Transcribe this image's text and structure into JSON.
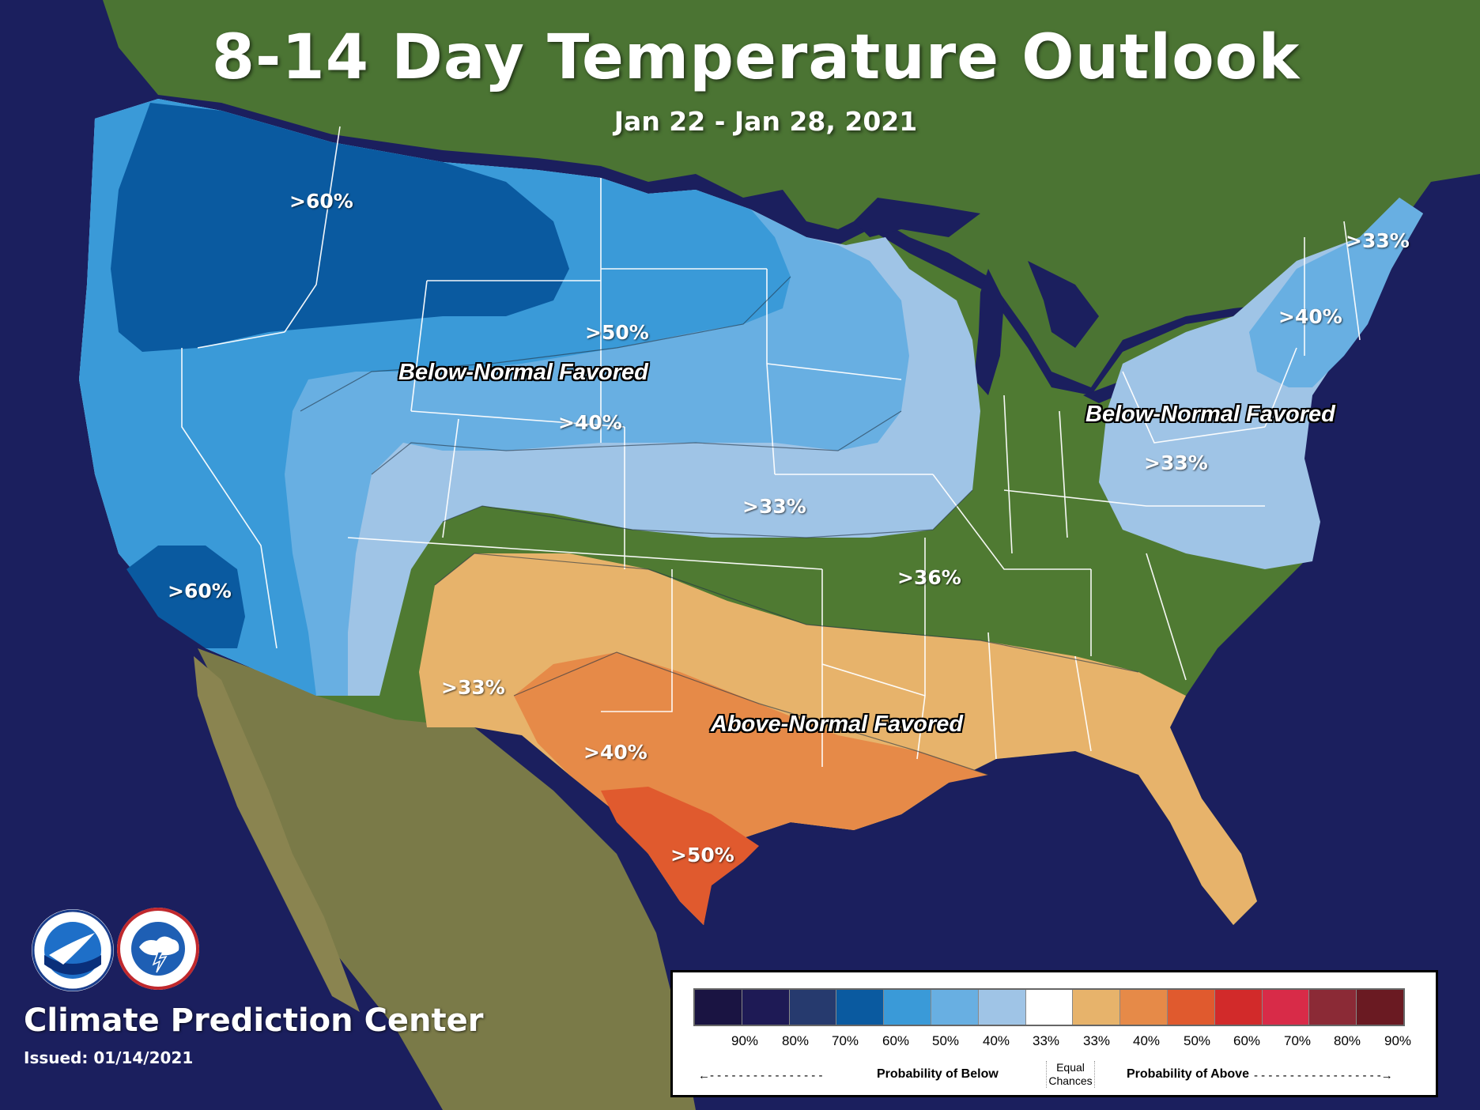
{
  "title": "8-14 Day Temperature Outlook",
  "date_range": "Jan 22 - Jan 28, 2021",
  "footer": {
    "org": "Climate Prediction Center",
    "issued": "Issued: 01/14/2021",
    "logos": [
      "noaa-logo",
      "nws-logo"
    ]
  },
  "region_labels": {
    "below_west": "Below-Normal Favored",
    "below_east": "Below-Normal Favored",
    "above_south": "Above-Normal Favored"
  },
  "contour_labels": [
    ">60%",
    ">50%",
    ">40%",
    ">33%",
    ">60%",
    ">33%",
    ">40%",
    ">33%",
    ">36%",
    ">33%",
    ">40%",
    ">50%"
  ],
  "legend": {
    "below_ticks": [
      "90%",
      "80%",
      "70%",
      "60%",
      "50%",
      "40%",
      "33%"
    ],
    "above_ticks": [
      "33%",
      "40%",
      "50%",
      "60%",
      "70%",
      "80%",
      "90%"
    ],
    "below_caption": "Probability of Below",
    "equal_line1": "Equal",
    "equal_line2": "Chances",
    "above_caption": "Probability of Above",
    "colors": [
      "#1a1442",
      "#1e1a55",
      "#263a6e",
      "#0a5aa0",
      "#3a9ad8",
      "#68afe2",
      "#9fc4e6",
      "#ffffff",
      "#e7b36b",
      "#e68a48",
      "#e05a2e",
      "#d22a2a",
      "#d82b48",
      "#8b2a36",
      "#6a1a22"
    ]
  },
  "colors": {
    "ocean": "#1b1f5e",
    "land": "#4f7a32",
    "below_33": "#9fc4e6",
    "below_40": "#68afe2",
    "below_50": "#3a9ad8",
    "below_60": "#0a5aa0",
    "above_33": "#e7b36b",
    "above_40": "#e68a48",
    "above_50": "#e05a2e"
  }
}
